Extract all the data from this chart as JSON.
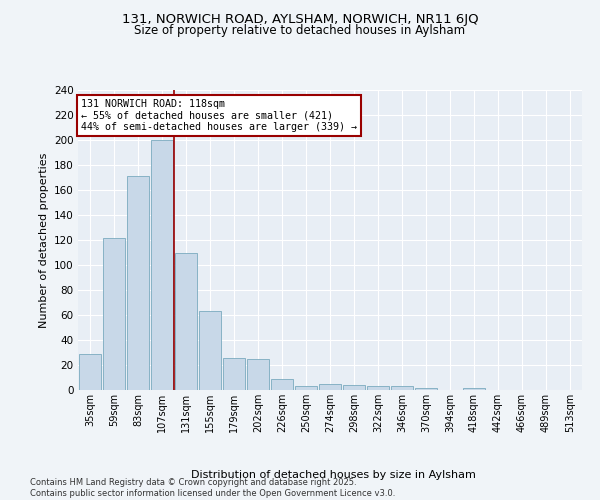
{
  "title": "131, NORWICH ROAD, AYLSHAM, NORWICH, NR11 6JQ",
  "subtitle": "Size of property relative to detached houses in Aylsham",
  "xlabel": "Distribution of detached houses by size in Aylsham",
  "ylabel": "Number of detached properties",
  "bar_color": "#c8d8e8",
  "bar_edge_color": "#7aaabf",
  "categories": [
    "35sqm",
    "59sqm",
    "83sqm",
    "107sqm",
    "131sqm",
    "155sqm",
    "179sqm",
    "202sqm",
    "226sqm",
    "250sqm",
    "274sqm",
    "298sqm",
    "322sqm",
    "346sqm",
    "370sqm",
    "394sqm",
    "418sqm",
    "442sqm",
    "466sqm",
    "489sqm",
    "513sqm"
  ],
  "values": [
    29,
    122,
    171,
    200,
    110,
    63,
    26,
    25,
    9,
    3,
    5,
    4,
    3,
    3,
    2,
    0,
    2,
    0,
    0,
    0,
    0
  ],
  "vline_color": "#990000",
  "annotation_title": "131 NORWICH ROAD: 118sqm",
  "annotation_line1": "← 55% of detached houses are smaller (421)",
  "annotation_line2": "44% of semi-detached houses are larger (339) →",
  "annotation_box_color": "#ffffff",
  "annotation_box_edge": "#990000",
  "ylim": [
    0,
    240
  ],
  "yticks": [
    0,
    20,
    40,
    60,
    80,
    100,
    120,
    140,
    160,
    180,
    200,
    220,
    240
  ],
  "bg_color": "#e8eef5",
  "grid_color": "#ffffff",
  "fig_bg_color": "#f0f4f8",
  "footer": "Contains HM Land Registry data © Crown copyright and database right 2025.\nContains public sector information licensed under the Open Government Licence v3.0."
}
